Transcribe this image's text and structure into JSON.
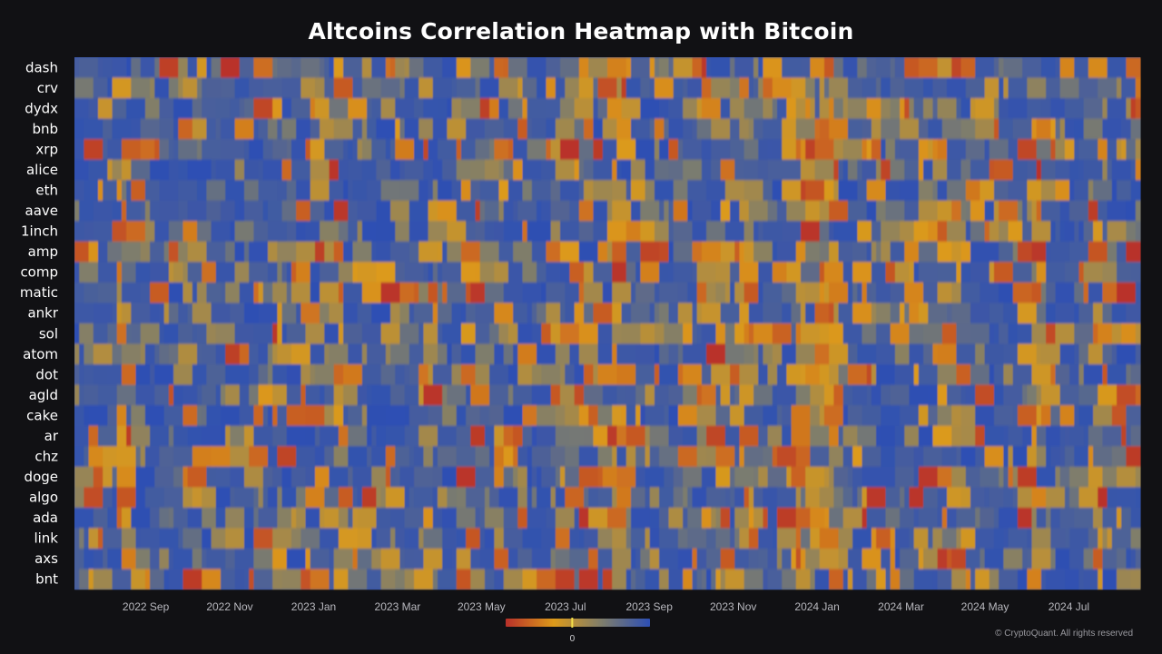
{
  "chart_data": {
    "type": "heatmap",
    "title": "Altcoins Correlation Heatmap with Bitcoin",
    "rows": [
      "dash",
      "crv",
      "dydx",
      "bnb",
      "xrp",
      "alice",
      "eth",
      "aave",
      "1inch",
      "amp",
      "comp",
      "matic",
      "ankr",
      "sol",
      "atom",
      "dot",
      "agld",
      "cake",
      "ar",
      "chz",
      "doge",
      "algo",
      "ada",
      "link",
      "axs",
      "bnt"
    ],
    "x_tick_labels": [
      "2022 Sep",
      "2022 Nov",
      "2023 Jan",
      "2023 Mar",
      "2023 May",
      "2023 Jul",
      "2023 Sep",
      "2023 Nov",
      "2024 Jan",
      "2024 Mar",
      "2024 May",
      "2024 Jul"
    ],
    "x_start": "2022 Jul",
    "x_end": "2024 Aug",
    "n_columns": 226,
    "colorscale": {
      "colors": [
        "#b8302a",
        "#dc9a1a",
        "#7e7d6c",
        "#2d4fb4"
      ],
      "center_label": "0",
      "orientation": "red (low correlation) to blue (high correlation)"
    },
    "values_note": "Per-day correlation values are not legible at screenshot resolution; the majority of cells are high (blue) with scattered low-correlation streaks (orange/red), notably around 2024 Jan."
  },
  "credit": "© CryptoQuant. All rights reserved"
}
